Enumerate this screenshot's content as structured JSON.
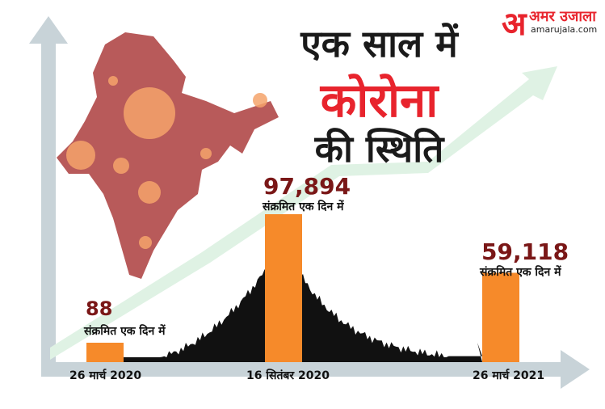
{
  "title": {
    "line1": "एक साल में",
    "line2": "कोरोना",
    "line3": "की स्थिति"
  },
  "brand": {
    "name": "अमर उजाला",
    "mark": "अ",
    "site": "amarujala.com"
  },
  "colors": {
    "bar": "#f68a2a",
    "curve": "#111111",
    "value_text": "#7a1717",
    "highlight": "#e8242d",
    "trend_arrow": "#dff2e4",
    "axis": "#c8d3d8",
    "map": "#b85a5a"
  },
  "chart_data": {
    "type": "bar",
    "title": "एक साल में कोरोना की स्थिति",
    "categories": [
      "26 मार्च 2020",
      "16 सितंबर 2020",
      "26 मार्च 2021"
    ],
    "values": [
      88,
      97894,
      59118
    ],
    "value_labels": [
      "88",
      "97,894",
      "59,118"
    ],
    "bar_caption": "संक्रमित एक दिन में",
    "ylim": [
      0,
      100000
    ],
    "grid": false,
    "legend": "none"
  }
}
